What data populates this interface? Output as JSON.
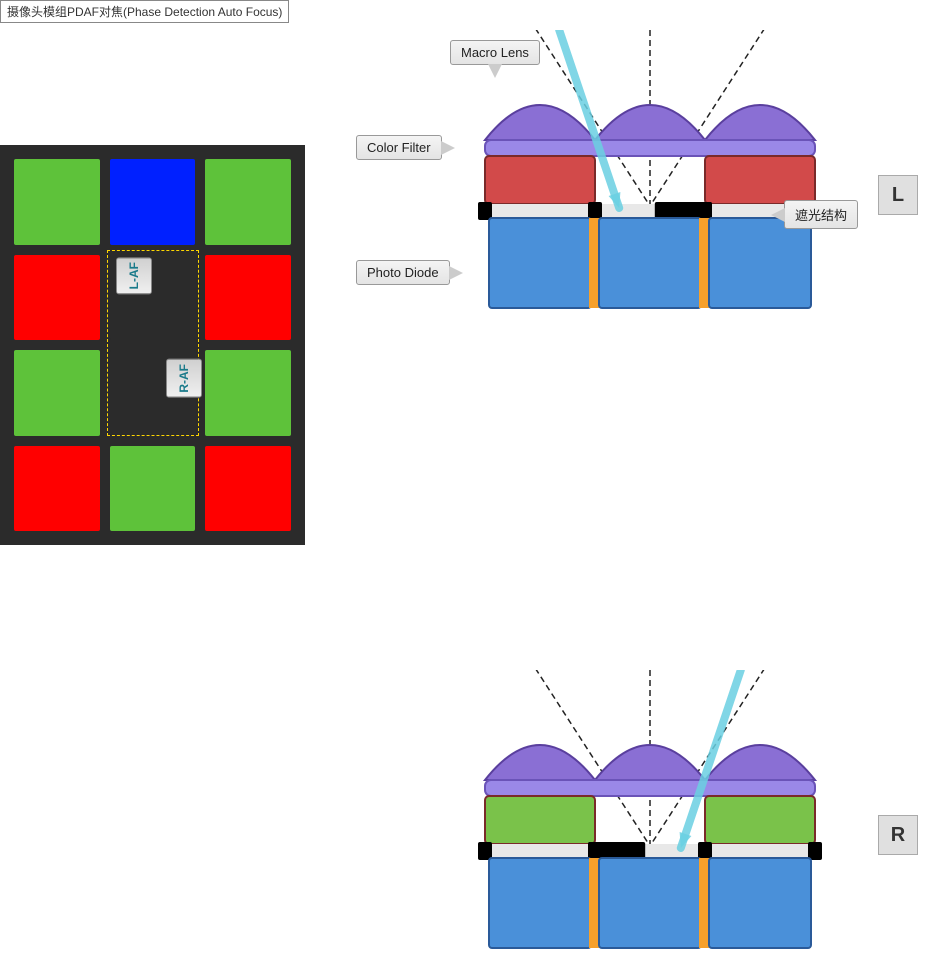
{
  "caption": "摄像头模组PDAF对焦(Phase Detection Auto Focus)",
  "leftPanel": {
    "background": "#2b2b2b",
    "cells": [
      {
        "row": 0,
        "col": 0,
        "color": "#5ec23a"
      },
      {
        "row": 0,
        "col": 1,
        "color": "#0020ff"
      },
      {
        "row": 0,
        "col": 2,
        "color": "#5ec23a"
      },
      {
        "row": 1,
        "col": 0,
        "color": "#ff0000"
      },
      {
        "row": 1,
        "col": 1,
        "color": "#2b2b2b"
      },
      {
        "row": 1,
        "col": 2,
        "color": "#ff0000"
      },
      {
        "row": 2,
        "col": 0,
        "color": "#5ec23a"
      },
      {
        "row": 2,
        "col": 1,
        "color": "#2b2b2b"
      },
      {
        "row": 2,
        "col": 2,
        "color": "#5ec23a"
      },
      {
        "row": 3,
        "col": 0,
        "color": "#ff0000"
      },
      {
        "row": 3,
        "col": 1,
        "color": "#5ec23a"
      },
      {
        "row": 3,
        "col": 2,
        "color": "#ff0000"
      }
    ],
    "afLabels": {
      "l": "L-AF",
      "r": "R-AF"
    }
  },
  "callouts": {
    "macroLens": "Macro Lens",
    "colorFilter": "Color Filter",
    "photoDiode": "Photo Diode",
    "lightShield": "遮光结构"
  },
  "sideLabels": {
    "top": "L",
    "bottom": "R"
  },
  "cross": {
    "lens": {
      "fill": "#8a6fd4",
      "stroke": "#5a3f9e"
    },
    "lensBase": {
      "fill": "#9a88e8",
      "stroke": "#6a53b8"
    },
    "filterRed": "#d24a4a",
    "filterGreen": "#7ac24a",
    "maskBlack": "#000000",
    "maskWhite": "#e8e8e8",
    "diode": {
      "fill": "#4a90d9",
      "stroke": "#2a5a99"
    },
    "pillar": "#f7a02b",
    "arrow": "#6ad0e2"
  }
}
